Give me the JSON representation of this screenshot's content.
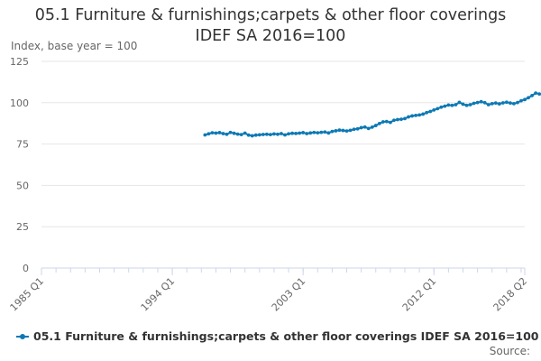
{
  "title_line1": "05.1 Furniture & furnishings;carpets & other floor coverings",
  "title_line2": "IDEF SA 2016=100",
  "source_label": "Source:",
  "colors": {
    "series": "#0d79b4",
    "grid": "#e6e6e6",
    "axis_text": "#666666",
    "tick": "#ccd6eb"
  },
  "chart_data": {
    "type": "line",
    "title": "05.1 Furniture & furnishings;carpets & other floor coverings IDEF SA 2016=100",
    "ylabel": "Index, base year = 100",
    "xlabel": "",
    "ylim": [
      0,
      125
    ],
    "yticks": [
      0,
      25,
      50,
      75,
      100,
      125
    ],
    "x_range_start": "1985 Q1",
    "x_range_end": "2018 Q2",
    "xtick_labels": [
      "1985 Q1",
      "1994 Q1",
      "2003 Q1",
      "2012 Q1",
      "2018 Q2"
    ],
    "grid": true,
    "legend_position": "bottom",
    "series": [
      {
        "name": "05.1 Furniture & furnishings;carpets & other floor coverings IDEF SA 2016=100",
        "start": "1996 Q2",
        "values": [
          80.5,
          81.2,
          81.8,
          81.6,
          81.9,
          81.3,
          80.9,
          82.0,
          81.5,
          81.0,
          80.7,
          81.6,
          80.4,
          80.0,
          80.4,
          80.6,
          80.8,
          80.9,
          80.7,
          81.1,
          80.9,
          81.3,
          80.5,
          81.2,
          81.5,
          81.4,
          81.6,
          81.9,
          81.3,
          81.7,
          82.0,
          81.8,
          82.1,
          82.3,
          81.7,
          82.6,
          83.0,
          83.4,
          83.2,
          82.9,
          83.3,
          83.9,
          84.2,
          84.9,
          85.3,
          84.4,
          85.2,
          86.2,
          87.4,
          88.4,
          88.6,
          88.1,
          89.4,
          89.8,
          90.0,
          90.4,
          91.4,
          92.0,
          92.3,
          92.6,
          93.1,
          94.0,
          94.7,
          95.6,
          96.4,
          97.3,
          97.9,
          98.6,
          98.4,
          98.8,
          100.2,
          99.1,
          98.4,
          98.8,
          99.6,
          100.1,
          100.6,
          100.0,
          98.8,
          99.4,
          99.8,
          99.3,
          99.9,
          100.3,
          99.8,
          99.4,
          100.1,
          101.2,
          101.9,
          103.0,
          104.3,
          105.8,
          105.3,
          104.9,
          105.4,
          105.0
        ]
      }
    ]
  }
}
